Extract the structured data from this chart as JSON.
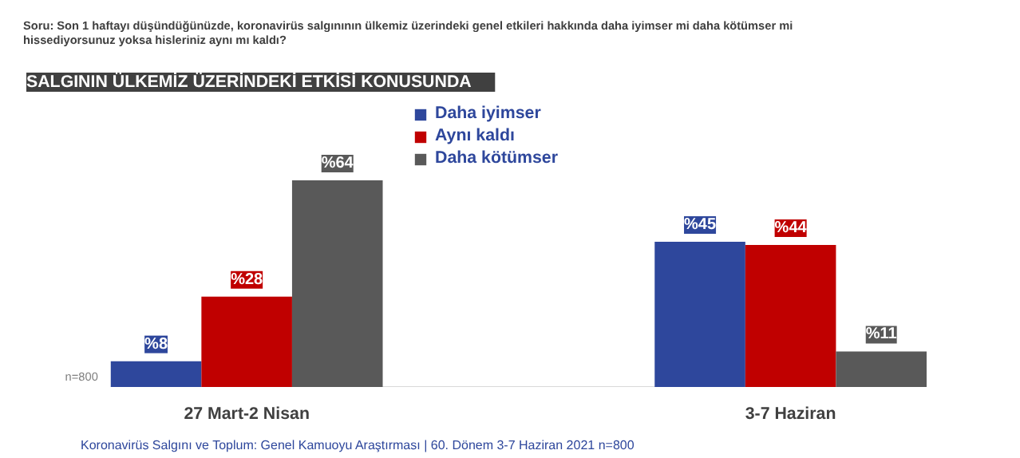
{
  "chart_data": {
    "type": "bar",
    "subtitle": "Soru: Son 1 haftayı düşündüğünüzde, koronavirüs salgınının ülkemiz üzerindeki genel etkileri hakkında daha iyimser mi daha kötümser mi hissediyorsunuz yoksa hisleriniz aynı mı kaldı?",
    "title": "SALGININ ÜLKEMİZ ÜZERİNDEKİ  ETKİSİ KONUSUNDA",
    "categories": [
      "27 Mart-2 Nisan",
      "3-7 Haziran"
    ],
    "series": [
      {
        "name": "Daha iyimser",
        "color": "#2e479c",
        "values": [
          8,
          45
        ],
        "value_labels": [
          "%8",
          "%45"
        ]
      },
      {
        "name": "Aynı kaldı",
        "color": "#c00000",
        "values": [
          28,
          44
        ],
        "value_labels": [
          "%28",
          "%44"
        ]
      },
      {
        "name": "Daha kötümser",
        "color": "#595959",
        "values": [
          64,
          11
        ],
        "value_labels": [
          "%64",
          "%11"
        ]
      }
    ],
    "legend": "top",
    "grid": false,
    "annotations": [
      "n=800",
      "Koronavirüs Salgını ve Toplum: Genel Kamuoyu Araştırması | 60. Dönem 3-7 Haziran 2021  n=800"
    ]
  }
}
